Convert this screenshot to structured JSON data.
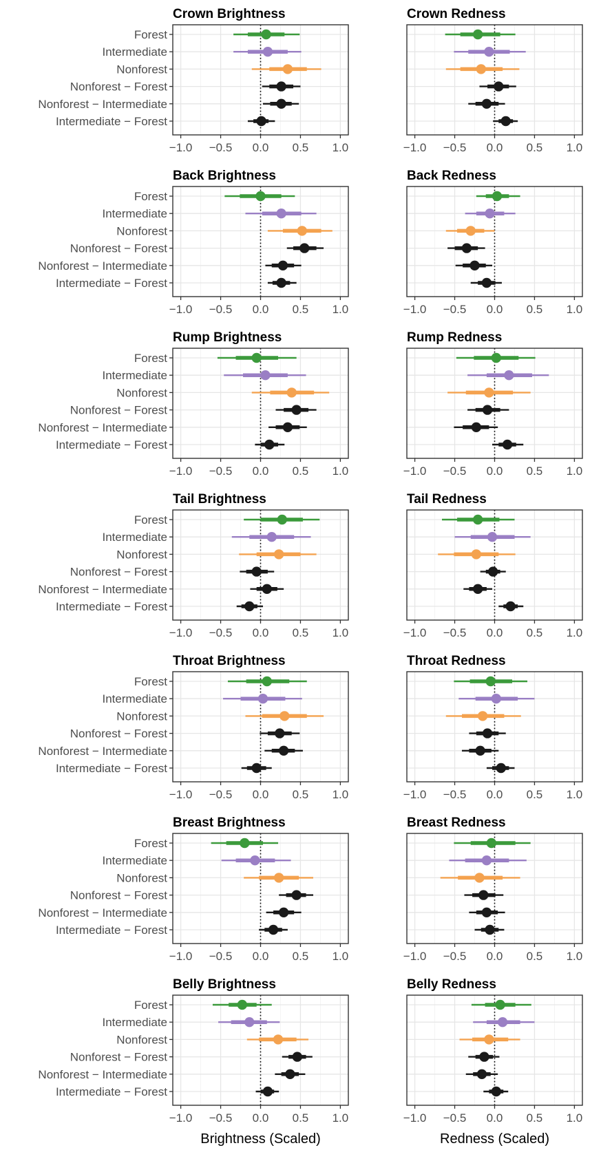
{
  "figure": {
    "x_axis_titles": [
      "Brightness (Scaled)",
      "Redness (Scaled)"
    ]
  },
  "chart_data": {
    "type": "scatter",
    "row_labels": [
      "Forest",
      "Intermediate",
      "Nonforest",
      "Nonforest − Forest",
      "Nonforest − Intermediate",
      "Intermediate − Forest"
    ],
    "row_groups": [
      "Forest",
      "Intermediate",
      "Nonforest",
      "contrast",
      "contrast",
      "contrast"
    ],
    "colors": {
      "Forest": "#3b9a3b",
      "Intermediate": "#9a7fc4",
      "Nonforest": "#f4a24f",
      "contrast": "#1a1a1a"
    },
    "xlim": [
      -1.1,
      1.1
    ],
    "xticks": [
      -1.0,
      -0.5,
      0.0,
      0.5,
      1.0
    ],
    "xtick_labels": [
      "−1.0",
      "−0.5",
      "0.0",
      "0.5",
      "1.0"
    ],
    "reference_line_x": 0,
    "grid": true,
    "interval_note": "each row: point estimate with inner (thick) and outer (thin) credible intervals",
    "panels": [
      {
        "title": "Crown Brightness",
        "rows": [
          {
            "est": 0.07,
            "inner": [
              -0.16,
              0.3
            ],
            "outer": [
              -0.34,
              0.49
            ]
          },
          {
            "est": 0.09,
            "inner": [
              -0.16,
              0.34
            ],
            "outer": [
              -0.34,
              0.51
            ]
          },
          {
            "est": 0.34,
            "inner": [
              0.11,
              0.58
            ],
            "outer": [
              -0.11,
              0.76
            ]
          },
          {
            "est": 0.26,
            "inner": [
              0.11,
              0.41
            ],
            "outer": [
              0.02,
              0.5
            ]
          },
          {
            "est": 0.26,
            "inner": [
              0.12,
              0.39
            ],
            "outer": [
              0.03,
              0.48
            ]
          },
          {
            "est": 0.01,
            "inner": [
              -0.09,
              0.1
            ],
            "outer": [
              -0.16,
              0.18
            ]
          }
        ]
      },
      {
        "title": "Crown Redness",
        "rows": [
          {
            "est": -0.21,
            "inner": [
              -0.43,
              0.07
            ],
            "outer": [
              -0.62,
              0.26
            ]
          },
          {
            "est": -0.07,
            "inner": [
              -0.33,
              0.19
            ],
            "outer": [
              -0.51,
              0.39
            ]
          },
          {
            "est": -0.17,
            "inner": [
              -0.43,
              0.1
            ],
            "outer": [
              -0.61,
              0.31
            ]
          },
          {
            "est": 0.05,
            "inner": [
              -0.09,
              0.18
            ],
            "outer": [
              -0.19,
              0.27
            ]
          },
          {
            "est": -0.1,
            "inner": [
              -0.24,
              0.05
            ],
            "outer": [
              -0.33,
              0.13
            ]
          },
          {
            "est": 0.14,
            "inner": [
              0.05,
              0.23
            ],
            "outer": [
              -0.02,
              0.29
            ]
          }
        ]
      },
      {
        "title": "Back Brightness",
        "rows": [
          {
            "est": 0.0,
            "inner": [
              -0.26,
              0.26
            ],
            "outer": [
              -0.45,
              0.43
            ]
          },
          {
            "est": 0.26,
            "inner": [
              0.02,
              0.51
            ],
            "outer": [
              -0.19,
              0.7
            ]
          },
          {
            "est": 0.52,
            "inner": [
              0.28,
              0.76
            ],
            "outer": [
              0.09,
              0.9
            ]
          },
          {
            "est": 0.55,
            "inner": [
              0.41,
              0.7
            ],
            "outer": [
              0.33,
              0.79
            ]
          },
          {
            "est": 0.28,
            "inner": [
              0.14,
              0.42
            ],
            "outer": [
              0.06,
              0.51
            ]
          },
          {
            "est": 0.26,
            "inner": [
              0.15,
              0.37
            ],
            "outer": [
              0.09,
              0.45
            ]
          }
        ]
      },
      {
        "title": "Back Redness",
        "rows": [
          {
            "est": 0.03,
            "inner": [
              -0.11,
              0.18
            ],
            "outer": [
              -0.23,
              0.32
            ]
          },
          {
            "est": -0.06,
            "inner": [
              -0.23,
              0.12
            ],
            "outer": [
              -0.37,
              0.26
            ]
          },
          {
            "est": -0.3,
            "inner": [
              -0.47,
              -0.13
            ],
            "outer": [
              -0.61,
              0.0
            ]
          },
          {
            "est": -0.35,
            "inner": [
              -0.5,
              -0.21
            ],
            "outer": [
              -0.59,
              -0.12
            ]
          },
          {
            "est": -0.25,
            "inner": [
              -0.4,
              -0.11
            ],
            "outer": [
              -0.49,
              -0.03
            ]
          },
          {
            "est": -0.1,
            "inner": [
              -0.21,
              0.01
            ],
            "outer": [
              -0.3,
              0.09
            ]
          }
        ]
      },
      {
        "title": "Rump Brightness",
        "rows": [
          {
            "est": -0.05,
            "inner": [
              -0.31,
              0.22
            ],
            "outer": [
              -0.54,
              0.45
            ]
          },
          {
            "est": 0.06,
            "inner": [
              -0.22,
              0.34
            ],
            "outer": [
              -0.46,
              0.57
            ]
          },
          {
            "est": 0.39,
            "inner": [
              0.12,
              0.67
            ],
            "outer": [
              -0.11,
              0.86
            ]
          },
          {
            "est": 0.45,
            "inner": [
              0.29,
              0.6
            ],
            "outer": [
              0.19,
              0.7
            ]
          },
          {
            "est": 0.34,
            "inner": [
              0.19,
              0.49
            ],
            "outer": [
              0.1,
              0.58
            ]
          },
          {
            "est": 0.11,
            "inner": [
              0.0,
              0.22
            ],
            "outer": [
              -0.07,
              0.3
            ]
          }
        ]
      },
      {
        "title": "Rump Redness",
        "rows": [
          {
            "est": 0.02,
            "inner": [
              -0.26,
              0.3
            ],
            "outer": [
              -0.48,
              0.51
            ]
          },
          {
            "est": 0.18,
            "inner": [
              -0.1,
              0.47
            ],
            "outer": [
              -0.34,
              0.68
            ]
          },
          {
            "est": -0.07,
            "inner": [
              -0.36,
              0.23
            ],
            "outer": [
              -0.59,
              0.45
            ]
          },
          {
            "est": -0.09,
            "inner": [
              -0.24,
              0.07
            ],
            "outer": [
              -0.34,
              0.18
            ]
          },
          {
            "est": -0.23,
            "inner": [
              -0.4,
              -0.07
            ],
            "outer": [
              -0.51,
              0.04
            ]
          },
          {
            "est": 0.16,
            "inner": [
              0.05,
              0.27
            ],
            "outer": [
              -0.03,
              0.36
            ]
          }
        ]
      },
      {
        "title": "Tail Brightness",
        "rows": [
          {
            "est": 0.27,
            "inner": [
              0.0,
              0.53
            ],
            "outer": [
              -0.21,
              0.74
            ]
          },
          {
            "est": 0.14,
            "inner": [
              -0.14,
              0.42
            ],
            "outer": [
              -0.36,
              0.63
            ]
          },
          {
            "est": 0.23,
            "inner": [
              -0.05,
              0.5
            ],
            "outer": [
              -0.27,
              0.7
            ]
          },
          {
            "est": -0.05,
            "inner": [
              -0.18,
              0.09
            ],
            "outer": [
              -0.26,
              0.17
            ]
          },
          {
            "est": 0.08,
            "inner": [
              -0.05,
              0.21
            ],
            "outer": [
              -0.13,
              0.29
            ]
          },
          {
            "est": -0.14,
            "inner": [
              -0.24,
              -0.04
            ],
            "outer": [
              -0.3,
              0.03
            ]
          }
        ]
      },
      {
        "title": "Tail Redness",
        "rows": [
          {
            "est": -0.21,
            "inner": [
              -0.47,
              0.06
            ],
            "outer": [
              -0.66,
              0.25
            ]
          },
          {
            "est": -0.03,
            "inner": [
              -0.3,
              0.25
            ],
            "outer": [
              -0.5,
              0.45
            ]
          },
          {
            "est": -0.23,
            "inner": [
              -0.51,
              0.05
            ],
            "outer": [
              -0.71,
              0.26
            ]
          },
          {
            "est": -0.02,
            "inner": [
              -0.11,
              0.07
            ],
            "outer": [
              -0.18,
              0.14
            ]
          },
          {
            "est": -0.21,
            "inner": [
              -0.32,
              -0.1
            ],
            "outer": [
              -0.39,
              -0.03
            ]
          },
          {
            "est": 0.2,
            "inner": [
              0.11,
              0.29
            ],
            "outer": [
              0.05,
              0.36
            ]
          }
        ]
      },
      {
        "title": "Throat Brightness",
        "rows": [
          {
            "est": 0.08,
            "inner": [
              -0.18,
              0.36
            ],
            "outer": [
              -0.41,
              0.58
            ]
          },
          {
            "est": 0.03,
            "inner": [
              -0.25,
              0.31
            ],
            "outer": [
              -0.47,
              0.52
            ]
          },
          {
            "est": 0.3,
            "inner": [
              0.02,
              0.58
            ],
            "outer": [
              -0.19,
              0.79
            ]
          },
          {
            "est": 0.24,
            "inner": [
              0.09,
              0.39
            ],
            "outer": [
              -0.01,
              0.49
            ]
          },
          {
            "est": 0.29,
            "inner": [
              0.14,
              0.43
            ],
            "outer": [
              0.05,
              0.53
            ]
          },
          {
            "est": -0.05,
            "inner": [
              -0.17,
              0.07
            ],
            "outer": [
              -0.24,
              0.14
            ]
          }
        ]
      },
      {
        "title": "Throat Redness",
        "rows": [
          {
            "est": -0.05,
            "inner": [
              -0.31,
              0.22
            ],
            "outer": [
              -0.51,
              0.41
            ]
          },
          {
            "est": 0.02,
            "inner": [
              -0.24,
              0.29
            ],
            "outer": [
              -0.45,
              0.5
            ]
          },
          {
            "est": -0.15,
            "inner": [
              -0.41,
              0.12
            ],
            "outer": [
              -0.61,
              0.33
            ]
          },
          {
            "est": -0.09,
            "inner": [
              -0.23,
              0.05
            ],
            "outer": [
              -0.32,
              0.14
            ]
          },
          {
            "est": -0.18,
            "inner": [
              -0.32,
              -0.04
            ],
            "outer": [
              -0.41,
              0.05
            ]
          },
          {
            "est": 0.08,
            "inner": [
              -0.03,
              0.18
            ],
            "outer": [
              -0.1,
              0.25
            ]
          }
        ]
      },
      {
        "title": "Breast Brightness",
        "rows": [
          {
            "est": -0.2,
            "inner": [
              -0.43,
              0.03
            ],
            "outer": [
              -0.62,
              0.22
            ]
          },
          {
            "est": -0.07,
            "inner": [
              -0.31,
              0.18
            ],
            "outer": [
              -0.49,
              0.38
            ]
          },
          {
            "est": 0.23,
            "inner": [
              -0.02,
              0.48
            ],
            "outer": [
              -0.21,
              0.66
            ]
          },
          {
            "est": 0.45,
            "inner": [
              0.32,
              0.57
            ],
            "outer": [
              0.23,
              0.66
            ]
          },
          {
            "est": 0.29,
            "inner": [
              0.16,
              0.42
            ],
            "outer": [
              0.07,
              0.51
            ]
          },
          {
            "est": 0.16,
            "inner": [
              0.05,
              0.27
            ],
            "outer": [
              -0.02,
              0.34
            ]
          }
        ]
      },
      {
        "title": "Breast Redness",
        "rows": [
          {
            "est": -0.04,
            "inner": [
              -0.3,
              0.26
            ],
            "outer": [
              -0.51,
              0.45
            ]
          },
          {
            "est": -0.1,
            "inner": [
              -0.37,
              0.18
            ],
            "outer": [
              -0.57,
              0.4
            ]
          },
          {
            "est": -0.19,
            "inner": [
              -0.46,
              0.1
            ],
            "outer": [
              -0.68,
              0.32
            ]
          },
          {
            "est": -0.14,
            "inner": [
              -0.28,
              0.01
            ],
            "outer": [
              -0.38,
              0.11
            ]
          },
          {
            "est": -0.1,
            "inner": [
              -0.23,
              0.04
            ],
            "outer": [
              -0.32,
              0.13
            ]
          },
          {
            "est": -0.06,
            "inner": [
              -0.17,
              0.05
            ],
            "outer": [
              -0.25,
              0.12
            ]
          }
        ]
      },
      {
        "title": "Belly Brightness",
        "rows": [
          {
            "est": -0.23,
            "inner": [
              -0.4,
              -0.05
            ],
            "outer": [
              -0.6,
              0.14
            ]
          },
          {
            "est": -0.14,
            "inner": [
              -0.37,
              0.08
            ],
            "outer": [
              -0.53,
              0.24
            ]
          },
          {
            "est": 0.22,
            "inner": [
              -0.02,
              0.45
            ],
            "outer": [
              -0.17,
              0.6
            ]
          },
          {
            "est": 0.46,
            "inner": [
              0.35,
              0.57
            ],
            "outer": [
              0.27,
              0.65
            ]
          },
          {
            "est": 0.37,
            "inner": [
              0.26,
              0.48
            ],
            "outer": [
              0.18,
              0.56
            ]
          },
          {
            "est": 0.09,
            "inner": [
              0.0,
              0.17
            ],
            "outer": [
              -0.06,
              0.23
            ]
          }
        ]
      },
      {
        "title": "Belly Redness",
        "rows": [
          {
            "est": 0.07,
            "inner": [
              -0.12,
              0.26
            ],
            "outer": [
              -0.29,
              0.46
            ]
          },
          {
            "est": 0.1,
            "inner": [
              -0.1,
              0.32
            ],
            "outer": [
              -0.27,
              0.5
            ]
          },
          {
            "est": -0.07,
            "inner": [
              -0.28,
              0.17
            ],
            "outer": [
              -0.44,
              0.32
            ]
          },
          {
            "est": -0.13,
            "inner": [
              -0.24,
              -0.02
            ],
            "outer": [
              -0.33,
              0.06
            ]
          },
          {
            "est": -0.16,
            "inner": [
              -0.27,
              -0.05
            ],
            "outer": [
              -0.36,
              0.04
            ]
          },
          {
            "est": 0.02,
            "inner": [
              -0.07,
              0.11
            ],
            "outer": [
              -0.14,
              0.17
            ]
          }
        ]
      }
    ]
  }
}
